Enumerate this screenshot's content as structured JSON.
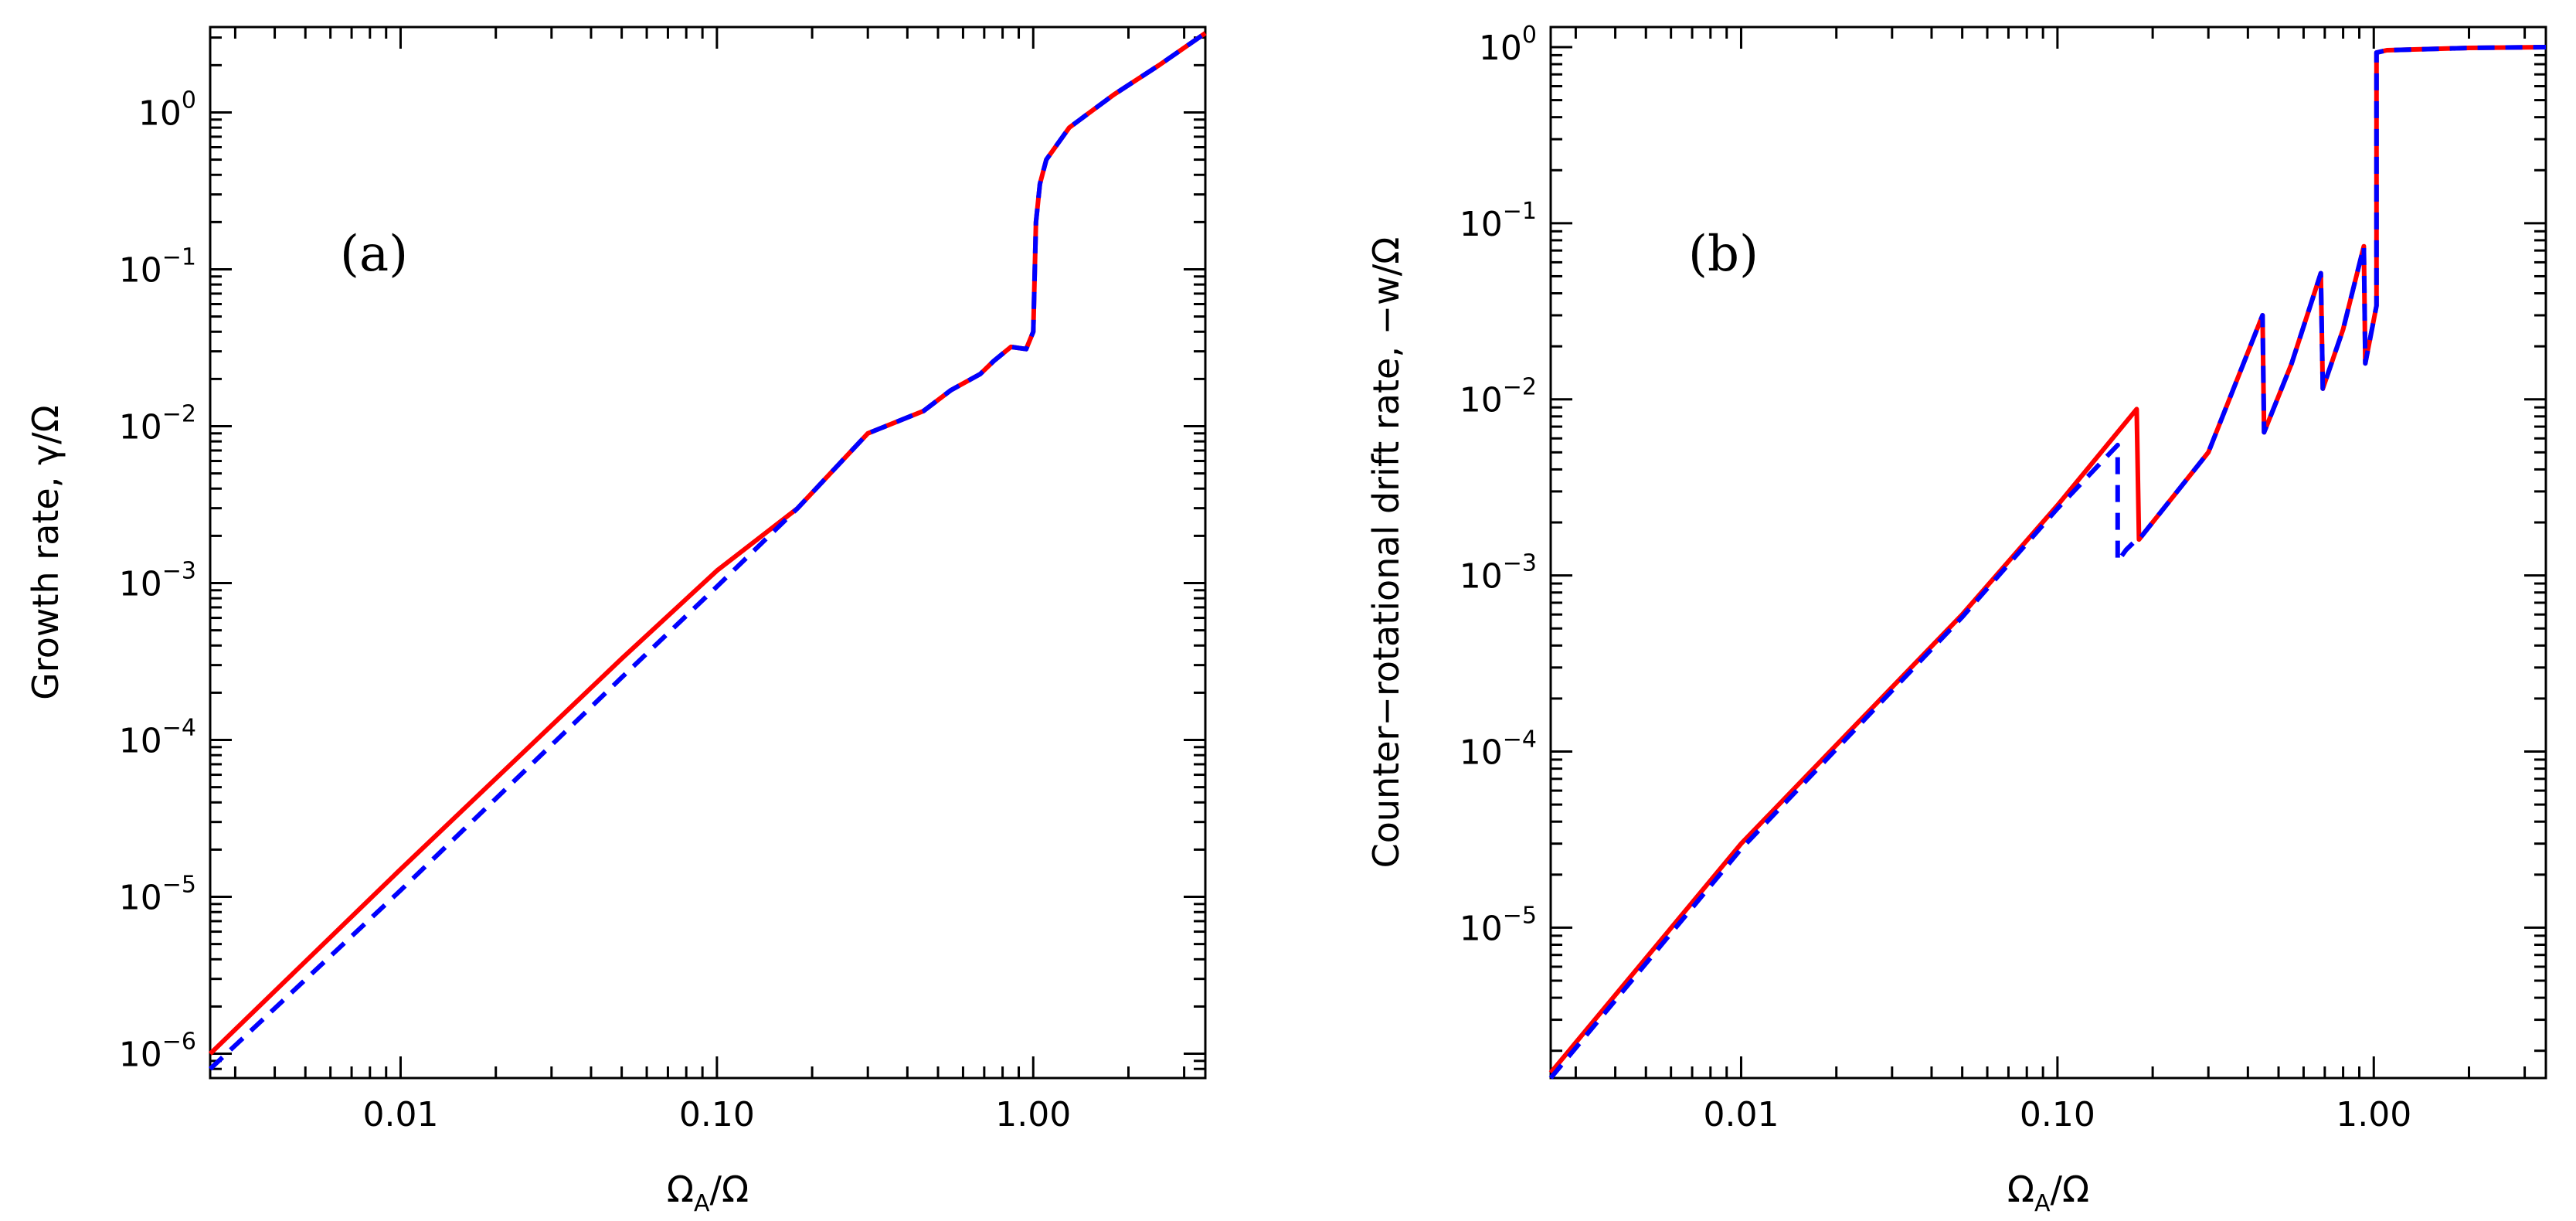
{
  "chart_data": [
    {
      "type": "line",
      "panel_label": "(a)",
      "xlabel": "Ω_A/Ω",
      "xlabel_main": "Ω",
      "xlabel_sub": "A",
      "xlabel_tail": "/Ω",
      "ylabel": "Growth rate, γ/Ω",
      "xscale": "log",
      "yscale": "log",
      "xlim": [
        0.0025,
        3.5
      ],
      "ylim": [
        7e-07,
        3.5
      ],
      "x_ticks": [
        {
          "value": 0.01,
          "label": "0.01"
        },
        {
          "value": 0.1,
          "label": "0.10"
        },
        {
          "value": 1,
          "label": "1.00"
        }
      ],
      "y_ticks": [
        {
          "value": 1e-06,
          "base": "10",
          "exp": "−6"
        },
        {
          "value": 1e-05,
          "base": "10",
          "exp": "−5"
        },
        {
          "value": 0.0001,
          "base": "10",
          "exp": "−4"
        },
        {
          "value": 0.001,
          "base": "10",
          "exp": "−3"
        },
        {
          "value": 0.01,
          "base": "10",
          "exp": "−2"
        },
        {
          "value": 0.1,
          "base": "10",
          "exp": "−1"
        },
        {
          "value": 1,
          "base": "10",
          "exp": "0"
        }
      ],
      "series": [
        {
          "name": "solid",
          "style": "solid",
          "color": "#ff0000",
          "x": [
            0.0025,
            0.01,
            0.05,
            0.1,
            0.18,
            0.3,
            0.45,
            0.55,
            0.68,
            0.75,
            0.85,
            0.95,
            1.0,
            1.02,
            1.05,
            1.1,
            1.3,
            1.8,
            2.5,
            3.5
          ],
          "y": [
            1e-06,
            1.5e-05,
            0.00033,
            0.0012,
            0.003,
            0.009,
            0.0125,
            0.017,
            0.0215,
            0.026,
            0.032,
            0.031,
            0.04,
            0.2,
            0.35,
            0.5,
            0.8,
            1.3,
            2.0,
            3.2
          ]
        },
        {
          "name": "dashed",
          "style": "dashed",
          "color": "#0000ff",
          "x": [
            0.0025,
            0.01,
            0.05,
            0.1,
            0.18,
            0.3,
            0.45,
            0.55,
            0.68,
            0.75,
            0.85,
            0.95,
            1.0,
            1.02,
            1.05,
            1.1,
            1.3,
            1.8,
            2.5,
            3.5
          ],
          "y": [
            8e-07,
            1.1e-05,
            0.00025,
            0.00095,
            0.003,
            0.009,
            0.0125,
            0.017,
            0.0215,
            0.026,
            0.032,
            0.031,
            0.04,
            0.2,
            0.35,
            0.5,
            0.8,
            1.3,
            2.0,
            3.2
          ]
        }
      ]
    },
    {
      "type": "line",
      "panel_label": "(b)",
      "xlabel": "Ω_A/Ω",
      "xlabel_main": "Ω",
      "xlabel_sub": "A",
      "xlabel_tail": "/Ω",
      "ylabel": "Counter−rotational drift rate, −w/Ω",
      "xscale": "log",
      "yscale": "log",
      "xlim": [
        0.0025,
        3.5
      ],
      "ylim": [
        1.4e-06,
        1.3
      ],
      "x_ticks": [
        {
          "value": 0.01,
          "label": "0.01"
        },
        {
          "value": 0.1,
          "label": "0.10"
        },
        {
          "value": 1,
          "label": "1.00"
        }
      ],
      "y_ticks": [
        {
          "value": 1e-05,
          "base": "10",
          "exp": "−5"
        },
        {
          "value": 0.0001,
          "base": "10",
          "exp": "−4"
        },
        {
          "value": 0.001,
          "base": "10",
          "exp": "−3"
        },
        {
          "value": 0.01,
          "base": "10",
          "exp": "−2"
        },
        {
          "value": 0.1,
          "base": "10",
          "exp": "−1"
        },
        {
          "value": 1,
          "base": "10",
          "exp": "0"
        }
      ],
      "series": [
        {
          "name": "solid",
          "style": "solid",
          "color": "#ff0000",
          "x": [
            0.0025,
            0.01,
            0.05,
            0.1,
            0.178,
            0.181,
            0.3,
            0.445,
            0.45,
            0.55,
            0.68,
            0.69,
            0.8,
            0.93,
            0.94,
            1.02,
            1.02,
            1.1,
            2.0,
            3.5
          ],
          "y": [
            1.5e-06,
            3e-05,
            0.0006,
            0.0025,
            0.0088,
            0.0016,
            0.005,
            0.03,
            0.0065,
            0.016,
            0.052,
            0.0115,
            0.025,
            0.074,
            0.016,
            0.034,
            0.93,
            0.96,
            0.99,
            1.0
          ]
        },
        {
          "name": "dashed",
          "style": "dashed",
          "color": "#0000ff",
          "x": [
            0.0025,
            0.01,
            0.05,
            0.1,
            0.155,
            0.155,
            0.165,
            0.178,
            0.181,
            0.3,
            0.445,
            0.45,
            0.55,
            0.68,
            0.69,
            0.8,
            0.93,
            0.94,
            1.02,
            1.02,
            1.1,
            2.0,
            3.5
          ],
          "y": [
            1.4e-06,
            2.8e-05,
            0.00058,
            0.0024,
            0.0055,
            0.0012,
            0.0014,
            0.0016,
            0.0016,
            0.005,
            0.03,
            0.0065,
            0.016,
            0.052,
            0.0115,
            0.025,
            0.074,
            0.016,
            0.034,
            0.93,
            0.96,
            0.99,
            1.0
          ]
        }
      ]
    }
  ]
}
